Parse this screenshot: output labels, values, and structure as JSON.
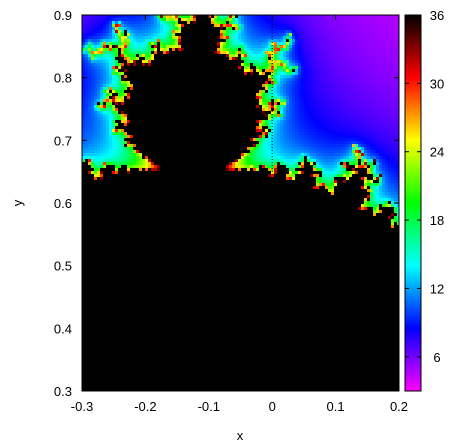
{
  "chart_data": {
    "type": "heatmap",
    "title": "",
    "xlabel": "x",
    "ylabel": "y",
    "xlim": [
      -0.3,
      0.2
    ],
    "ylim": [
      0.3,
      0.9
    ],
    "x_ticks": [
      "-0.3",
      "-0.2",
      "-0.1",
      "0",
      "0.1",
      "0.2"
    ],
    "y_ticks": [
      "0.3",
      "0.4",
      "0.5",
      "0.6",
      "0.7",
      "0.8",
      "0.9"
    ],
    "colorbar": {
      "range": [
        3,
        36
      ],
      "ticks": [
        "6",
        "12",
        "18",
        "24",
        "30",
        "36"
      ],
      "palette": [
        "#ff00ff",
        "#0000ff",
        "#00ffff",
        "#00ff00",
        "#ffff00",
        "#ff0000",
        "#000000"
      ]
    },
    "grid": false,
    "annotations": [
      {
        "type": "vertical-dotted-line",
        "x": 0
      }
    ]
  }
}
